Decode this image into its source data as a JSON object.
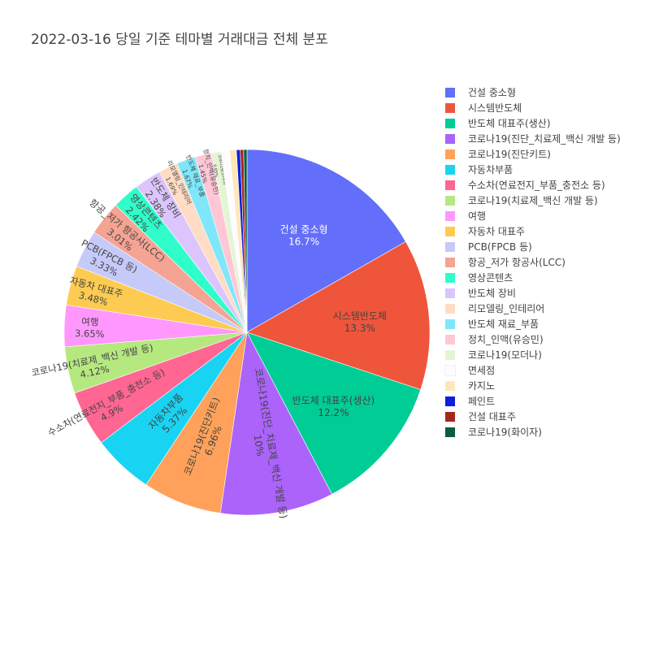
{
  "chart_data": {
    "type": "pie",
    "title": "2022-03-16 당일 기준 테마별 거래대금 전체 분포",
    "slices": [
      {
        "label": "건설 중소형",
        "value": 16.7,
        "pct_text": "16.7%",
        "color": "#636efa",
        "text_color": "#ffffff"
      },
      {
        "label": "시스템반도체",
        "value": 13.3,
        "pct_text": "13.3%",
        "color": "#ef553b",
        "text_color": "#444444"
      },
      {
        "label": "반도체 대표주(생산)",
        "value": 12.2,
        "pct_text": "12.2%",
        "color": "#00cc96",
        "text_color": "#444444"
      },
      {
        "label": "코로나19(진단_치료제_백신 개발 등)",
        "value": 10.0,
        "pct_text": "10%",
        "color": "#ab63fa",
        "text_color": "#444444"
      },
      {
        "label": "코로나19(진단키트)",
        "value": 6.96,
        "pct_text": "6.96%",
        "color": "#ffa15a",
        "text_color": "#444444"
      },
      {
        "label": "자동차부품",
        "value": 5.37,
        "pct_text": "5.37%",
        "color": "#19d3f3",
        "text_color": "#444444"
      },
      {
        "label": "수소차(연료전지_부품_충전소 등)",
        "value": 4.9,
        "pct_text": "4.9%",
        "color": "#ff6692",
        "text_color": "#444444"
      },
      {
        "label": "코로나19(치료제_백신 개발 등)",
        "value": 4.12,
        "pct_text": "4.12%",
        "color": "#b6e880",
        "text_color": "#444444"
      },
      {
        "label": "여행",
        "value": 3.65,
        "pct_text": "3.65%",
        "color": "#ff97ff",
        "text_color": "#444444"
      },
      {
        "label": "자동차 대표주",
        "value": 3.48,
        "pct_text": "3.48%",
        "color": "#fecb52",
        "text_color": "#444444"
      },
      {
        "label": "PCB(FPCB 등)",
        "value": 3.33,
        "pct_text": "3.33%",
        "color": "#c6caf9",
        "text_color": "#444444"
      },
      {
        "label": "항공_저가 항공사(LCC)",
        "value": 3.01,
        "pct_text": "3.01%",
        "color": "#f5a393",
        "text_color": "#444444"
      },
      {
        "label": "영상콘텐츠",
        "value": 2.42,
        "pct_text": "2.42%",
        "color": "#2ffeca",
        "text_color": "#444444"
      },
      {
        "label": "반도체 장비",
        "value": 2.38,
        "pct_text": "2.38%",
        "color": "#dcc5fd",
        "text_color": "#444444"
      },
      {
        "label": "리모델링_인테리어",
        "value": 1.69,
        "pct_text": "1.69%",
        "color": "#ffdcc3",
        "text_color": "#444444"
      },
      {
        "label": "반도체 재료_부품",
        "value": 1.67,
        "pct_text": "1.67%",
        "color": "#80e6f9",
        "text_color": "#444444"
      },
      {
        "label": "정치_인맥(유승민)",
        "value": 1.45,
        "pct_text": "1.45%",
        "color": "#ffc6d6",
        "text_color": "#444444"
      },
      {
        "label": "코로나19(모더나)",
        "value": 0.85,
        "pct_text": "0.85%",
        "color": "#e4f5d3",
        "text_color": "#444444"
      },
      {
        "label": "면세점",
        "value": 0.75,
        "pct_text": "",
        "color": "#fffcff",
        "text_color": "#444444"
      },
      {
        "label": "카지노",
        "value": 0.6,
        "pct_text": "",
        "color": "#ffe7b9",
        "text_color": "#444444"
      },
      {
        "label": "페인트",
        "value": 0.33,
        "pct_text": "",
        "color": "#0d1fda",
        "text_color": "#444444"
      },
      {
        "label": "건설 대표주",
        "value": 0.3,
        "pct_text": "",
        "color": "#a3291c",
        "text_color": "#444444"
      },
      {
        "label": "코로나19(화이자)",
        "value": 0.29,
        "pct_text": "",
        "color": "#0b5e3c",
        "text_color": "#444444"
      }
    ],
    "legend_position": "right",
    "sort": "descending, clockwise from top"
  }
}
